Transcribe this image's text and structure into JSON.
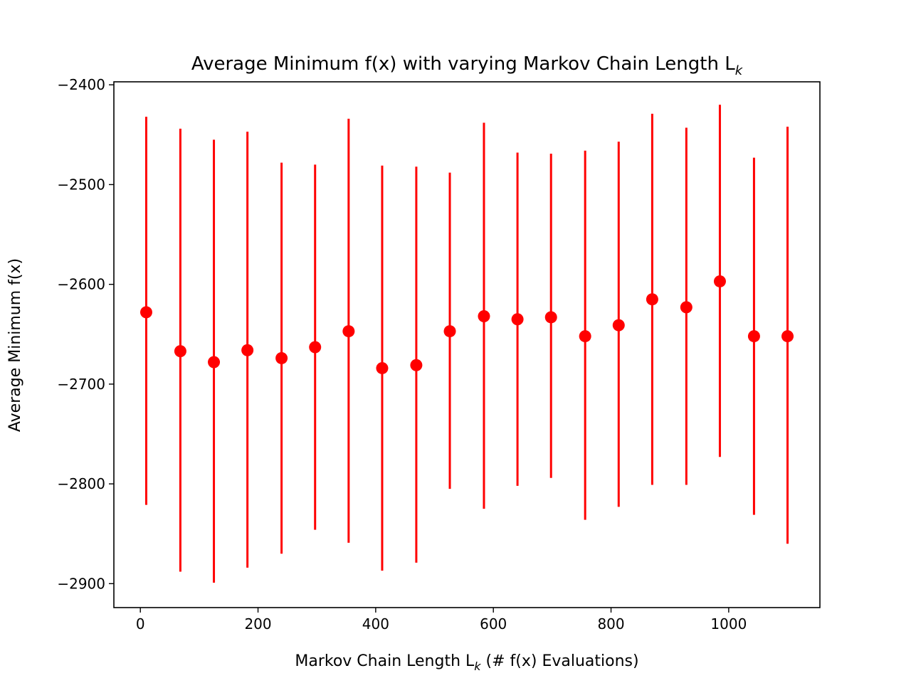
{
  "chart_data": {
    "type": "scatter",
    "title": "Average Minimum f(x) with varying Markov Chain Length L",
    "title_subscript": "k",
    "xlabel_prefix": "Markov Chain Length L",
    "xlabel_subscript": "k",
    "xlabel_suffix": " (# f(x) Evaluations)",
    "ylabel": "Average Minimum f(x)",
    "xlim": [
      -45,
      1155
    ],
    "ylim": [
      -2924,
      -2397
    ],
    "xticks": [
      0,
      200,
      400,
      600,
      800,
      1000
    ],
    "yticks": [
      -2900,
      -2800,
      -2700,
      -2600,
      -2500,
      -2400
    ],
    "grid": false,
    "color": "#ff0000",
    "series": [
      {
        "x": [
          10,
          68,
          125,
          182,
          240,
          297,
          354,
          411,
          469,
          526,
          584,
          641,
          698,
          756,
          813,
          870,
          928,
          985,
          1043,
          1100
        ],
        "y": [
          -2628,
          -2667,
          -2678,
          -2666,
          -2674,
          -2663,
          -2647,
          -2684,
          -2681,
          -2647,
          -2632,
          -2635,
          -2633,
          -2652,
          -2641,
          -2615,
          -2623,
          -2597,
          -2652,
          -2652
        ],
        "err_low": [
          -2821,
          -2888,
          -2899,
          -2884,
          -2870,
          -2846,
          -2859,
          -2887,
          -2879,
          -2805,
          -2825,
          -2802,
          -2794,
          -2836,
          -2823,
          -2801,
          -2801,
          -2773,
          -2831,
          -2860
        ],
        "err_high": [
          -2432,
          -2444,
          -2455,
          -2447,
          -2478,
          -2480,
          -2434,
          -2481,
          -2482,
          -2488,
          -2438,
          -2468,
          -2469,
          -2466,
          -2457,
          -2429,
          -2443,
          -2420,
          -2473,
          -2442
        ]
      }
    ]
  }
}
